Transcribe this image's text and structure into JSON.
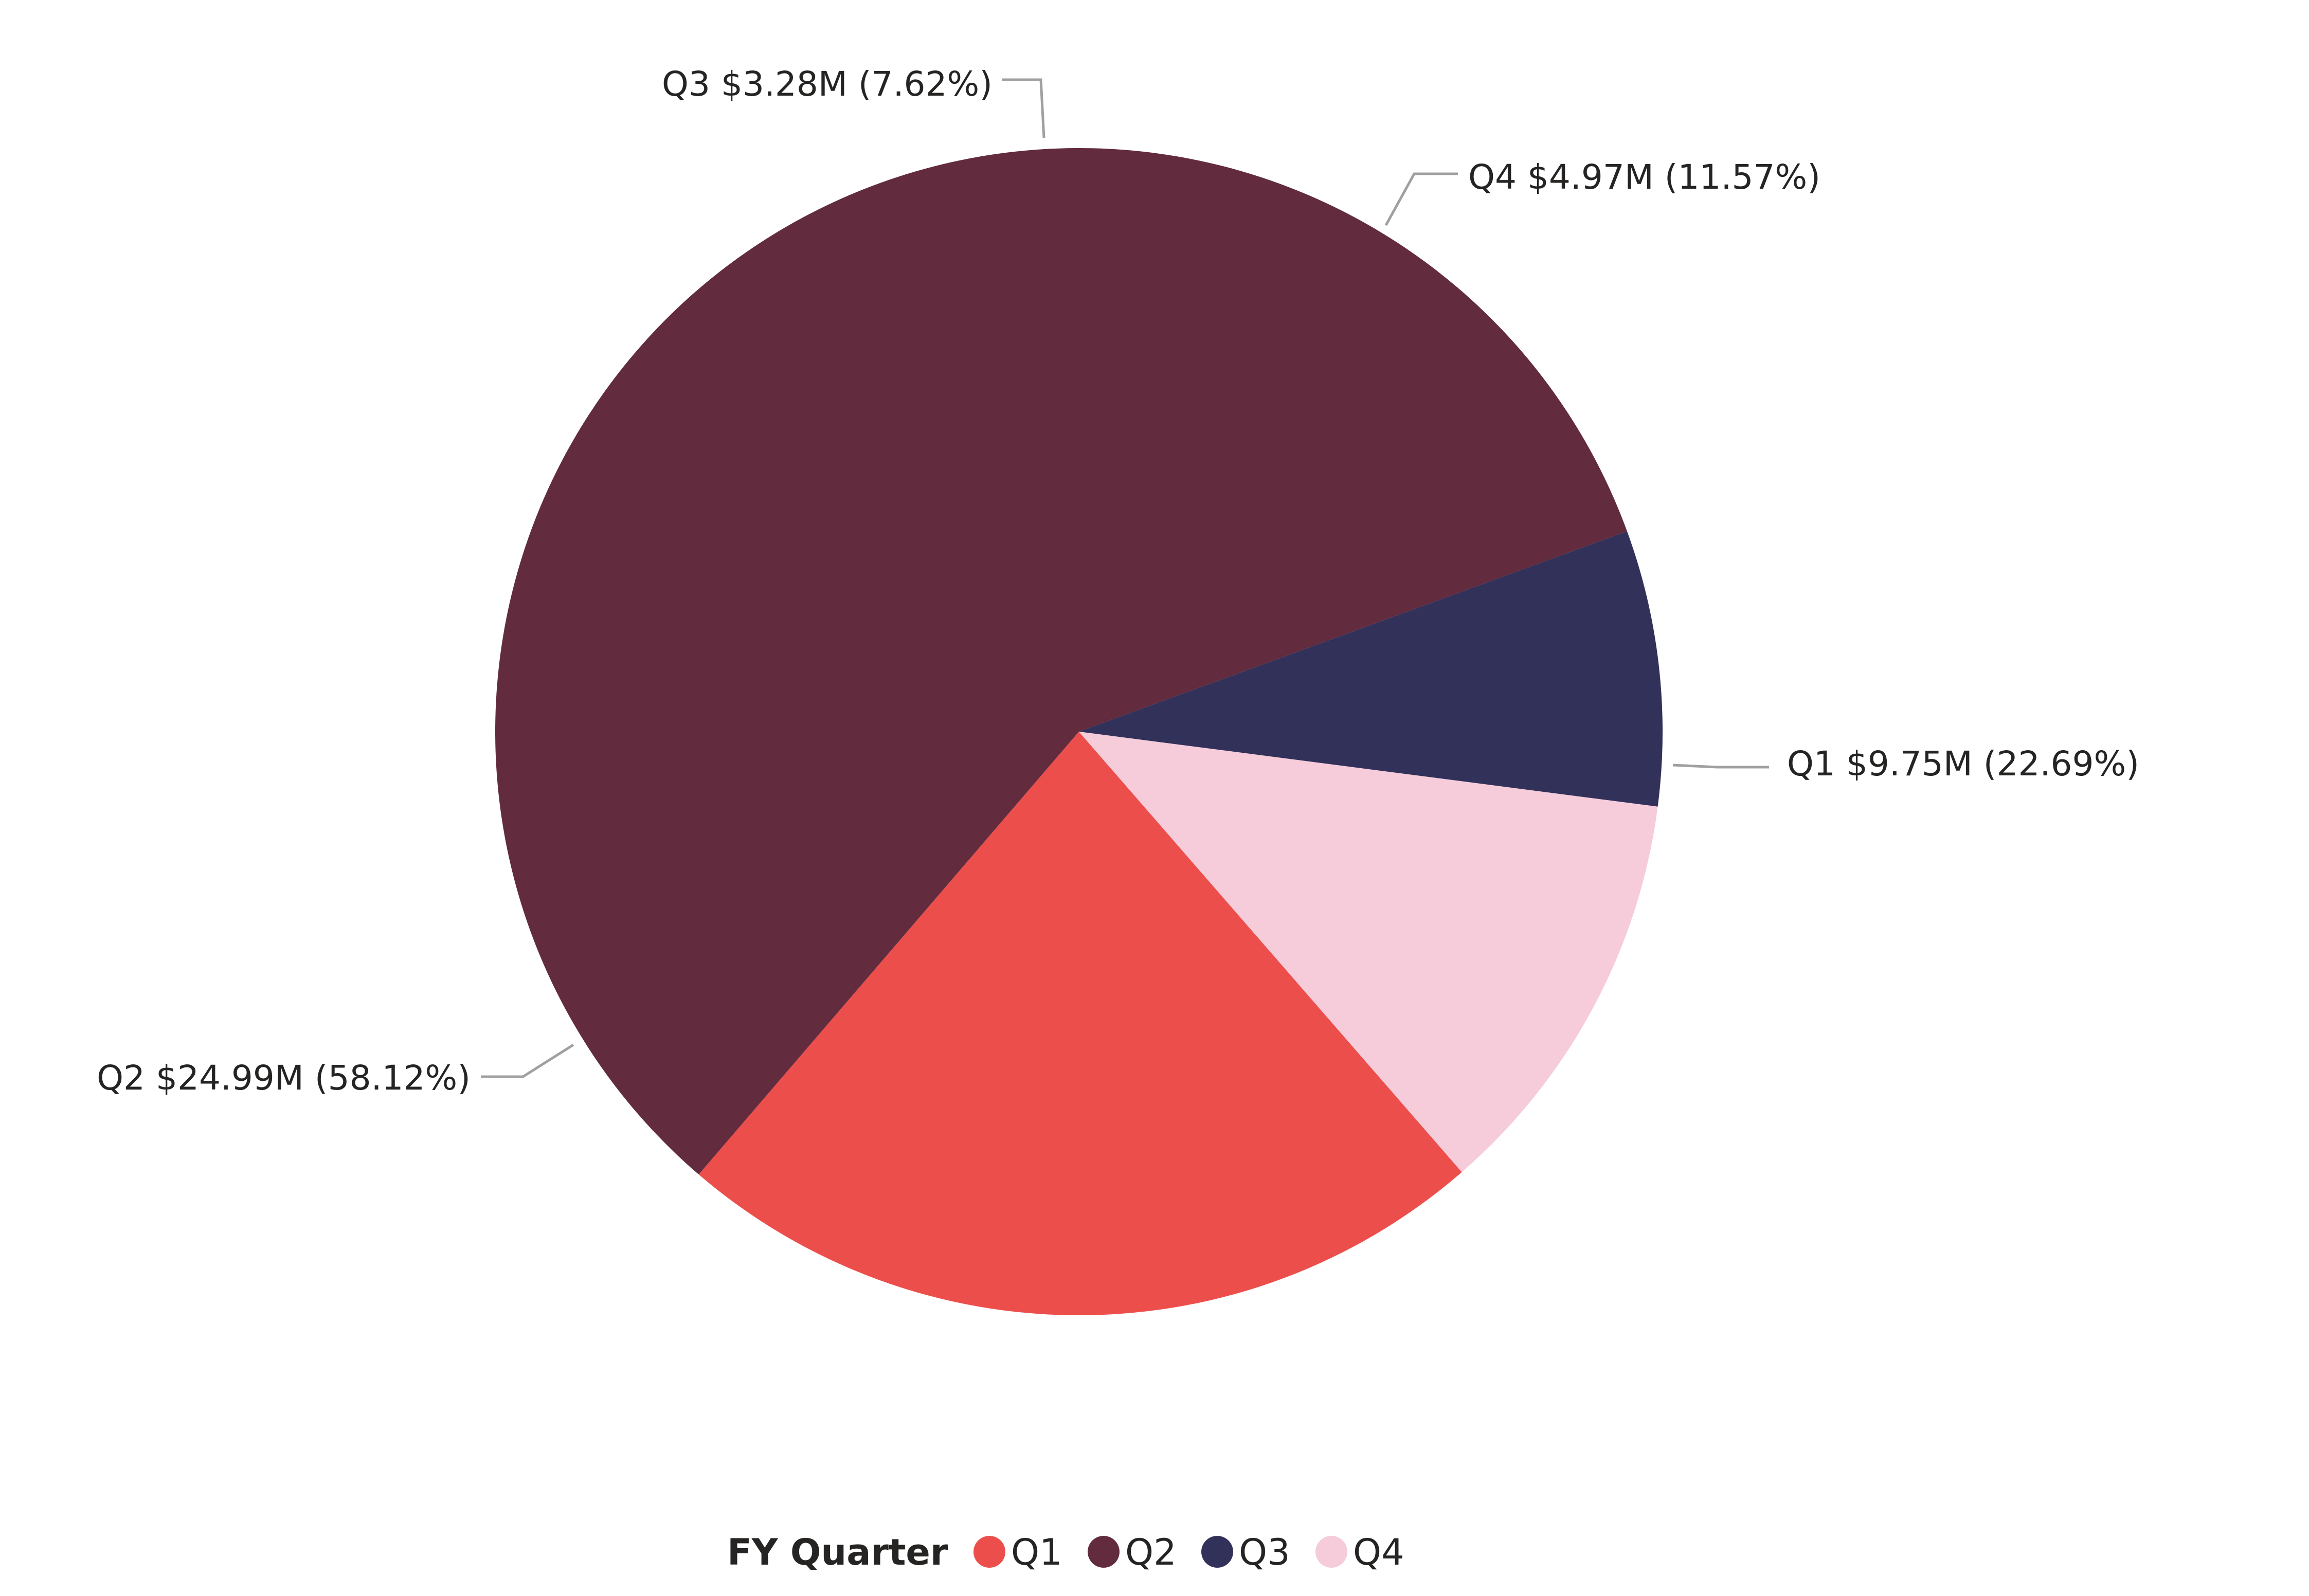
{
  "chart_data": {
    "type": "pie",
    "categories": [
      "Q1",
      "Q2",
      "Q3",
      "Q4"
    ],
    "values": [
      9.75,
      24.99,
      3.28,
      4.97
    ],
    "percentages": [
      22.69,
      58.12,
      7.62,
      11.57
    ],
    "data_labels": [
      "Q1 $9.75M (22.69%)",
      "Q2 $24.99M (58.12%)",
      "Q3 $3.28M (7.62%)",
      "Q4 $4.97M (11.57%)"
    ],
    "colors": [
      "#EC4F4B",
      "#622B3E",
      "#31315A",
      "#F6CBDA"
    ],
    "legend": {
      "title": "FY Quarter",
      "position": "bottom-center",
      "items": [
        "Q1",
        "Q2",
        "Q3",
        "Q4"
      ]
    },
    "start_angle_deg": 49,
    "direction": "clockwise"
  }
}
